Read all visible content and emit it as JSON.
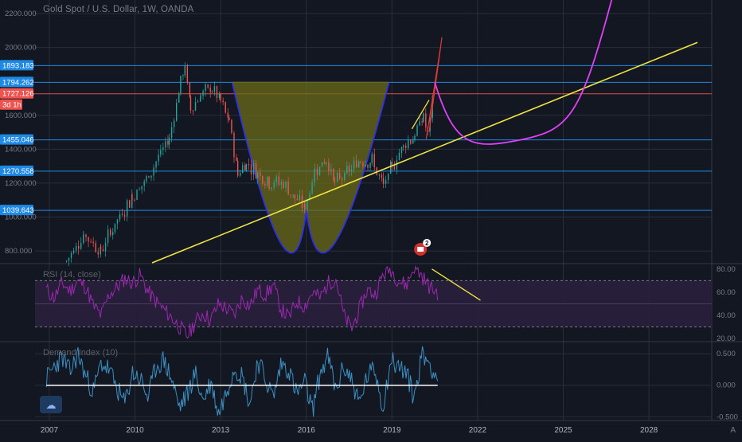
{
  "chart_title": "Gold Spot / U.S. Dollar, 1W, OANDA",
  "colors": {
    "background": "#131722",
    "grid": "#2a2e39",
    "candles_up": "#26a69a",
    "candles_down": "#ef5350",
    "trendline": "#f0e442",
    "projection": "#e040fb",
    "cup_fill": "#6b6b1a",
    "cup_outline": "#2b2bff",
    "hline_blue": "#2196f3",
    "hline_red": "#ef5350",
    "rsi_line": "#9c27b0",
    "rsi_band": "#2a1f3d",
    "demand_line": "#3b8fc2",
    "price_label_bg": "#1e88e5",
    "current_label_bg": "#ef5350"
  },
  "chart_data": [
    {
      "type": "candlestick",
      "title": "Gold Spot / U.S. Dollar, 1W, OANDA",
      "x_ticks": [
        "2007",
        "2010",
        "2013",
        "2016",
        "2019",
        "2022",
        "2025",
        "2028"
      ],
      "y_ticks": [
        800,
        1000,
        1200,
        1400,
        1600,
        2000,
        2200
      ],
      "y_tick_labels": [
        "800.000",
        "1000.000",
        "1200.000",
        "1400.000",
        "1600.000",
        "2000.000",
        "2200.000"
      ],
      "ylim": [
        730,
        2280
      ],
      "xlim": [
        2006.5,
        2030.2
      ],
      "horizontal_levels": [
        {
          "label": "1893.183",
          "value": 1893.183,
          "color": "blue"
        },
        {
          "label": "1794.262",
          "value": 1794.262,
          "color": "blue"
        },
        {
          "label": "1727.126",
          "value": 1727.126,
          "color": "red"
        },
        {
          "label": "1455.046",
          "value": 1455.046,
          "color": "blue"
        },
        {
          "label": "1270.558",
          "value": 1270.558,
          "color": "blue"
        },
        {
          "label": "1039.643",
          "value": 1039.643,
          "color": "blue"
        }
      ],
      "current_price_countdown": "3d 1h",
      "price_path": [
        [
          2007.6,
          740
        ],
        [
          2008.2,
          900
        ],
        [
          2008.8,
          800
        ],
        [
          2009.3,
          960
        ],
        [
          2009.9,
          1120
        ],
        [
          2010.4,
          1220
        ],
        [
          2010.9,
          1380
        ],
        [
          2011.2,
          1460
        ],
        [
          2011.6,
          1800
        ],
        [
          2011.75,
          1890
        ],
        [
          2011.95,
          1640
        ],
        [
          2012.3,
          1720
        ],
        [
          2012.7,
          1760
        ],
        [
          2013.0,
          1680
        ],
        [
          2013.3,
          1560
        ],
        [
          2013.6,
          1260
        ],
        [
          2013.9,
          1320
        ],
        [
          2014.3,
          1260
        ],
        [
          2014.7,
          1210
        ],
        [
          2015.2,
          1200
        ],
        [
          2015.6,
          1110
        ],
        [
          2015.95,
          1055
        ],
        [
          2016.3,
          1280
        ],
        [
          2016.7,
          1340
        ],
        [
          2017.0,
          1200
        ],
        [
          2017.5,
          1270
        ],
        [
          2017.9,
          1340
        ],
        [
          2018.3,
          1330
        ],
        [
          2018.7,
          1180
        ],
        [
          2019.0,
          1290
        ],
        [
          2019.4,
          1430
        ],
        [
          2019.8,
          1480
        ],
        [
          2020.1,
          1600
        ],
        [
          2020.25,
          1480
        ],
        [
          2020.5,
          1780
        ]
      ],
      "trendline": {
        "x": [
          2010.6,
          2029.7
        ],
        "y": [
          730,
          2030
        ]
      },
      "cup_rim": 1795,
      "cup": {
        "x": [
          2013.4,
          2016.0,
          2018.9
        ],
        "y": [
          1795,
          1040,
          1795
        ]
      },
      "projection_curve": {
        "x": [
          2020.5,
          2023.5,
          2026.7
        ],
        "y": [
          1795,
          1455,
          2285
        ]
      }
    },
    {
      "type": "line",
      "title": "RSI (14, close)",
      "y_ticks": [
        20,
        40,
        60,
        80
      ],
      "y_tick_labels": [
        "20.00",
        "40.00",
        "60.00",
        "80.00"
      ],
      "ylim": [
        18,
        84
      ],
      "band": [
        30,
        70
      ],
      "series": [
        {
          "values": [
            62,
            55,
            68,
            61,
            70,
            65,
            48,
            40,
            58,
            64,
            72,
            68,
            75,
            60,
            52,
            45,
            38,
            30,
            22,
            34,
            42,
            36,
            50,
            46,
            40,
            55,
            48,
            62,
            58,
            66,
            45,
            38,
            52,
            48,
            60,
            55,
            68,
            72,
            40,
            28,
            45,
            62,
            58,
            75,
            80,
            70,
            66,
            82,
            74,
            64,
            60
          ]
        }
      ],
      "trendline": {
        "x": [
          2020.4,
          2022.1
        ],
        "y": [
          80,
          53
        ]
      }
    },
    {
      "type": "line",
      "title": "Demand Index (10)",
      "y_ticks": [
        -0.5,
        0,
        0.5
      ],
      "y_tick_labels": [
        "-0.500",
        "0.000",
        "0.500"
      ],
      "ylim": [
        -0.56,
        0.68
      ],
      "series": [
        {
          "values": [
            0.1,
            0.3,
            0.45,
            0.2,
            0.5,
            0.15,
            -0.1,
            0.35,
            0.25,
            -0.05,
            -0.3,
            0.2,
            0.1,
            -0.2,
            0.3,
            0.4,
            0.1,
            -0.35,
            -0.15,
            0.2,
            -0.25,
            0.05,
            -0.45,
            -0.1,
            0.3,
            0.15,
            -0.3,
            0.4,
            0.1,
            -0.2,
            0.35,
            0.25,
            -0.15,
            0.05,
            -0.4,
            0.2,
            0.45,
            -0.1,
            0.3,
            0.1,
            -0.3,
            0.15,
            0.25,
            -0.35,
            0.4,
            0.3,
            0.2,
            -0.2,
            0.5,
            0.35,
            0.1
          ]
        }
      ],
      "zero_line": true
    }
  ],
  "pane_labels": {
    "rsi": "RSI (14, close)",
    "demand": "Demand Index (10)"
  },
  "event_marker": "2",
  "corner_label": "A",
  "logo_icon": "tradingview-logo-icon"
}
